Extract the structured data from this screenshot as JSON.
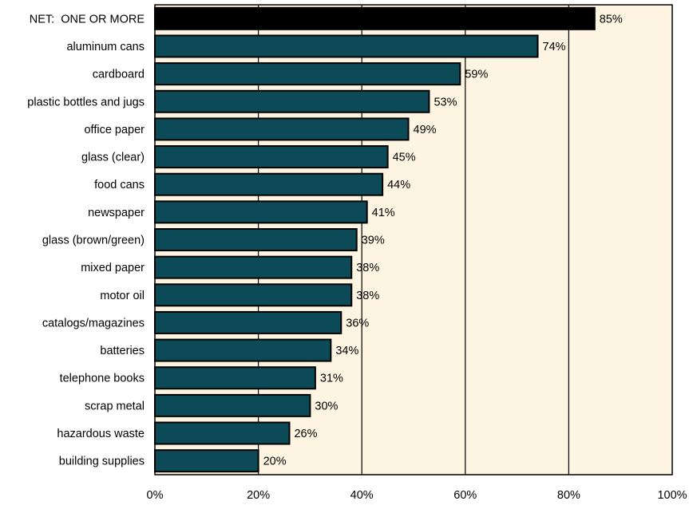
{
  "chart_data": {
    "type": "bar",
    "orientation": "horizontal",
    "categories": [
      "NET:  ONE OR MORE",
      "aluminum cans",
      "cardboard",
      "plastic bottles and jugs",
      "office paper",
      "glass (clear)",
      "food cans",
      "newspaper",
      "glass (brown/green)",
      "mixed paper",
      "motor oil",
      "catalogs/magazines",
      "batteries",
      "telephone books",
      "scrap metal",
      "hazardous waste",
      "building supplies"
    ],
    "values": [
      85,
      74,
      59,
      53,
      49,
      45,
      44,
      41,
      39,
      38,
      38,
      36,
      34,
      31,
      30,
      26,
      20
    ],
    "data_labels": [
      "85%",
      "74%",
      "59%",
      "53%",
      "49%",
      "45%",
      "44%",
      "41%",
      "39%",
      "38%",
      "38%",
      "36%",
      "34%",
      "31%",
      "30%",
      "26%",
      "20%"
    ],
    "x_ticks": [
      0,
      20,
      40,
      60,
      80,
      100
    ],
    "x_tick_labels": [
      "0%",
      "20%",
      "40%",
      "60%",
      "80%",
      "100%"
    ],
    "xlim": [
      0,
      100
    ],
    "grid": "vertical",
    "legend": "none",
    "colors": {
      "plot_background": "#fdf5e1",
      "bar": "#0d4a57",
      "highlight_bar": "#000000",
      "bar_edge": "#000000",
      "gridline": "#000000"
    }
  }
}
